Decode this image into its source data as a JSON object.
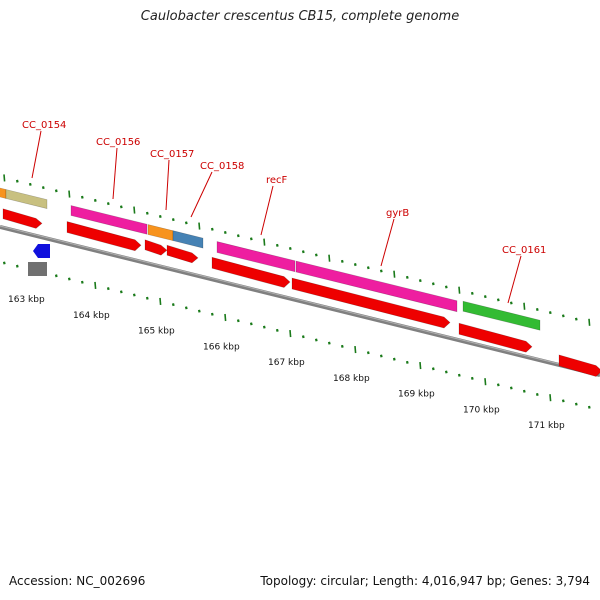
{
  "title": "Caulobacter crescentus CB15, complete genome",
  "footer": {
    "accession": "Accession: NC_002696",
    "summary": "Topology: circular; Length: 4,016,947 bp; Genes: 3,794"
  },
  "colors": {
    "gene_label": "#cc0000",
    "tick": "#1a7a1a",
    "backbone": "#808080",
    "cds": "#ee0000",
    "magenta": "#ee1ea0",
    "olive": "#c8c080",
    "orange": "#f7931e",
    "steel": "#4682b4",
    "green": "#33bb33",
    "blue": "#1010dd",
    "gray": "#707070"
  },
  "chart_data": {
    "type": "genome-map",
    "scale_labels": [
      "163 kbp",
      "164 kbp",
      "165 kbp",
      "166 kbp",
      "167 kbp",
      "168 kbp",
      "169 kbp",
      "170 kbp",
      "171 kbp"
    ],
    "gene_labels": [
      "CC_0154",
      "CC_0156",
      "CC_0157",
      "CC_0158",
      "recF",
      "gyrB",
      "CC_0161"
    ]
  }
}
